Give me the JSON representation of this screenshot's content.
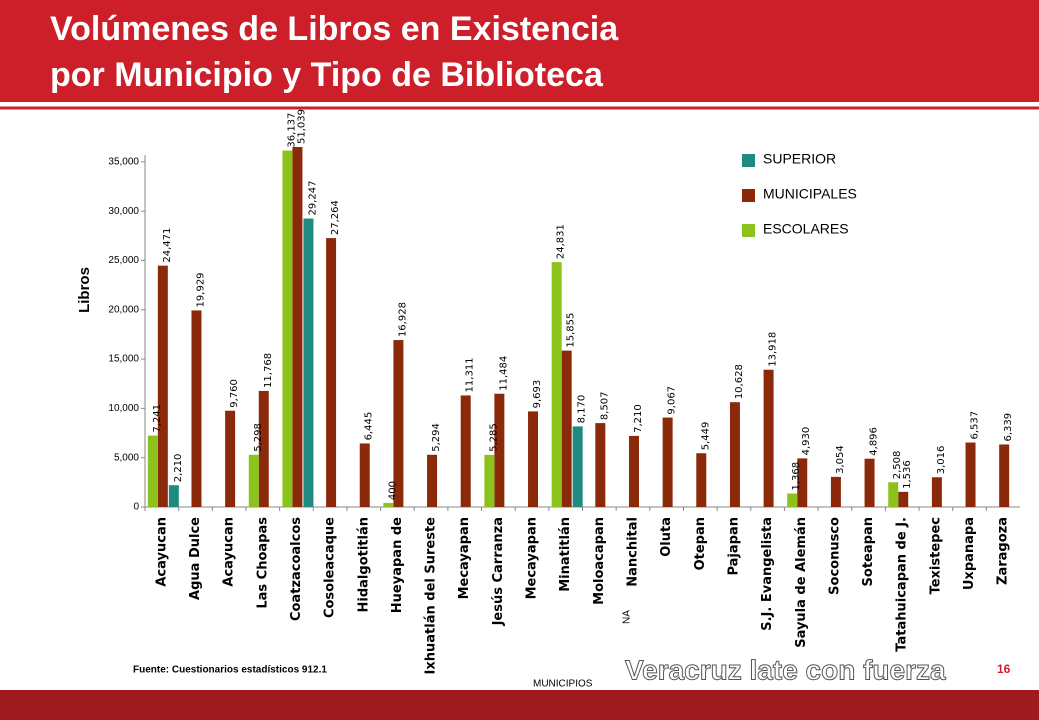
{
  "chart_data": {
    "type": "bar",
    "title": [
      "Volúmenes de Libros en Existencia",
      "por Municipio y Tipo de Biblioteca"
    ],
    "y_label": "Libros",
    "x_label": "MUNICIPIOS",
    "source": "Fuente: Cuestionarios estadísticos 912.1",
    "annotation": "NA",
    "categories": [
      "Acayucan",
      "Agua Dulce",
      "Acayucan",
      "Las Choapas",
      "Coatzacoalcos",
      "Cosoleacaque",
      "Hidalgotitlán",
      "Hueyapan de",
      "Ixhuatlán del Sureste",
      "Mecayapan",
      "Jesús Carranza",
      "Mecayapan",
      "Minatitlán",
      "Moloacapan",
      "Nanchital",
      "Oluta",
      "Otepan",
      "Pajapan",
      "S.J. Evangelista",
      "Sayula de Alemán",
      "Soconusco",
      "Soteapan",
      "Tatahuicapan de J.",
      "Texistepec",
      "Uxpanapa",
      "Zaragoza"
    ],
    "series": [
      {
        "name": "SUPERIOR",
        "color": "#1f8a80",
        "values": [
          2210,
          null,
          null,
          null,
          29247,
          null,
          null,
          null,
          null,
          null,
          null,
          null,
          8170,
          null,
          null,
          null,
          null,
          null,
          null,
          null,
          null,
          null,
          null,
          null,
          null,
          null
        ],
        "value_labels": [
          "2,210",
          null,
          null,
          null,
          "29,247",
          null,
          null,
          null,
          null,
          null,
          null,
          null,
          "8,170",
          null,
          null,
          null,
          null,
          null,
          null,
          null,
          null,
          null,
          null,
          null,
          null,
          null
        ]
      },
      {
        "name": "MUNICIPALES",
        "color": "#8b2a0a",
        "values": [
          24471,
          19929,
          9760,
          11768,
          51039,
          27264,
          6445,
          16928,
          5294,
          11311,
          11484,
          9693,
          15855,
          8507,
          7210,
          9067,
          5449,
          10628,
          13918,
          4930,
          3054,
          4896,
          1536,
          3016,
          6537,
          6339
        ],
        "value_labels": [
          "24,471",
          "19,929",
          "9,760",
          "11,768",
          "51,039",
          "27,264",
          "6,445",
          "16,928",
          "5,294",
          "11,311",
          "11,484",
          "9,693",
          "15,855",
          "8,507",
          "7,210",
          "9,067",
          "5,449",
          "10,628",
          "13,918",
          "4,930",
          "3,054",
          "4,896",
          "1,536",
          "3,016",
          "6,537",
          "6,339"
        ]
      },
      {
        "name": "ESCOLARES",
        "color": "#8cc21c",
        "values": [
          7241,
          null,
          null,
          5298,
          36137,
          null,
          null,
          400,
          null,
          null,
          5285,
          null,
          24831,
          null,
          null,
          null,
          null,
          null,
          null,
          1368,
          null,
          null,
          2508,
          null,
          null,
          null
        ],
        "value_labels": [
          "7,241",
          null,
          null,
          "5,298",
          "36,137",
          null,
          null,
          "400",
          null,
          null,
          "5,285",
          null,
          "24,831",
          null,
          null,
          null,
          null,
          null,
          null,
          "1,368",
          null,
          null,
          "2,508",
          null,
          null,
          null
        ]
      }
    ],
    "ylim": [
      0,
      36500
    ],
    "yticks": [
      0,
      {
        "value": 5000,
        "label": "5,000"
      },
      {
        "value": 10000,
        "label": "10,000"
      },
      {
        "value": 15000,
        "label": "15,000"
      },
      {
        "value": 20000,
        "label": "20,000"
      },
      {
        "value": 25000,
        "label": "25,000"
      },
      {
        "value": 30000,
        "label": "30,000"
      },
      {
        "value": 35000,
        "label": "35,000"
      }
    ],
    "legend": "top-right",
    "grid": false
  },
  "slide": {
    "slogan": "Veracruz late con fuerza",
    "page": "16"
  }
}
